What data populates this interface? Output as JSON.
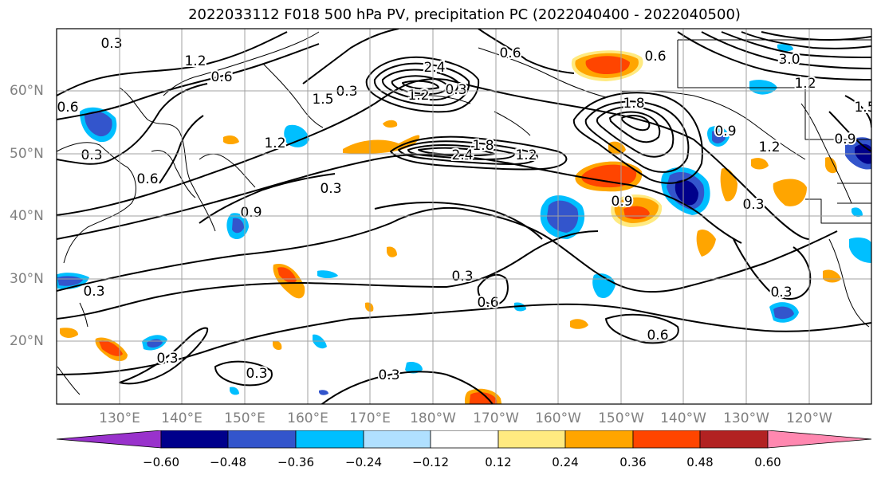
{
  "title": "2022033112 F018 500 hPa PV, precipitation PC (2022040400 - 2022040500)",
  "lat_labels": [
    "60°N",
    "50°N",
    "40°N",
    "30°N",
    "20°N"
  ],
  "lon_labels": [
    "130°E",
    "140°E",
    "150°E",
    "160°E",
    "170°E",
    "180°W",
    "170°W",
    "160°W",
    "150°W",
    "140°W",
    "130°W",
    "120°W"
  ],
  "contour_labels": [
    "1.2",
    "0.6",
    "0.6",
    "0.3",
    "0.6",
    "0.3",
    "0.3",
    "0.6",
    "0.9",
    "0.3",
    "1.2",
    "2.4",
    "1.8",
    "1.2",
    "0.3",
    "0.9",
    "0.3",
    "0.3",
    "0.6",
    "0.3",
    "0.3",
    "0.3",
    "0.3",
    "0.6",
    "0.6",
    "0.3",
    "0.9",
    "1.5",
    "3.0",
    "2.4",
    "1.2",
    "1.8",
    "1.2",
    "0.9",
    "1.2",
    "1.5"
  ],
  "colorbar": {
    "ticks": [
      "−0.60",
      "−0.48",
      "−0.36",
      "−0.24",
      "−0.12",
      "0.12",
      "0.24",
      "0.36",
      "0.48",
      "0.60"
    ],
    "colors": [
      "#9932cc",
      "#00008b",
      "#3355cc",
      "#00bfff",
      "#b0e0ff",
      "#ffffff",
      "#ffea80",
      "#ffa500",
      "#ff4500",
      "#b22222",
      "#ff88b0"
    ]
  }
}
